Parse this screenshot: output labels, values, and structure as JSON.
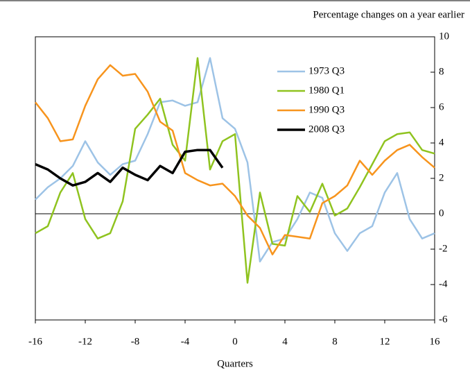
{
  "chart_data": {
    "type": "line",
    "subtitle": "Percentage changes on a year earlier",
    "x_label": "Quarters",
    "x": [
      -16,
      -15,
      -14,
      -13,
      -12,
      -11,
      -10,
      -9,
      -8,
      -7,
      -6,
      -5,
      -4,
      -3,
      -2,
      -1,
      0,
      1,
      2,
      3,
      4,
      5,
      6,
      7,
      8,
      9,
      10,
      11,
      12,
      13,
      14,
      15,
      16
    ],
    "xlim": [
      -16,
      16
    ],
    "xticks": [
      -16,
      -12,
      -8,
      -4,
      0,
      4,
      8,
      12,
      16
    ],
    "ylim": [
      -6,
      10
    ],
    "yticks": [
      -6,
      -4,
      -2,
      0,
      2,
      4,
      6,
      8,
      10
    ],
    "y_axis_side": "right",
    "legend": "upper right",
    "series": [
      {
        "name": "1973 Q3",
        "color": "#9dc3e6",
        "values": [
          0.8,
          1.5,
          2.0,
          2.7,
          4.1,
          2.9,
          2.2,
          2.8,
          3.0,
          4.5,
          6.3,
          6.4,
          6.1,
          6.3,
          8.8,
          5.4,
          4.8,
          2.9,
          -2.7,
          -1.6,
          -1.4,
          -0.3,
          1.2,
          0.9,
          -1.1,
          -2.1,
          -1.1,
          -0.7,
          1.2,
          2.3,
          -0.3,
          -1.4,
          -1.1
        ]
      },
      {
        "name": "1980 Q1",
        "color": "#8fc31f",
        "values": [
          -1.1,
          -0.7,
          1.2,
          2.3,
          -0.3,
          -1.4,
          -1.1,
          0.7,
          4.8,
          5.6,
          6.5,
          3.9,
          3.0,
          8.8,
          2.5,
          4.1,
          4.5,
          -3.9,
          1.2,
          -1.7,
          -1.8,
          1.0,
          0.1,
          1.7,
          -0.1,
          0.3,
          1.5,
          2.8,
          4.1,
          4.5,
          4.6,
          3.6,
          3.4
        ]
      },
      {
        "name": "1990 Q3",
        "color": "#f7941d",
        "values": [
          6.3,
          5.4,
          4.1,
          4.2,
          6.1,
          7.6,
          8.4,
          7.8,
          7.9,
          6.9,
          5.2,
          4.7,
          2.3,
          1.9,
          1.6,
          1.7,
          1.0,
          -0.1,
          -0.8,
          -2.3,
          -1.2,
          -1.3,
          -1.4,
          0.6,
          1.0,
          1.6,
          3.0,
          2.2,
          3.0,
          3.6,
          3.9,
          3.2,
          2.6
        ]
      },
      {
        "name": "2008 Q3",
        "color": "#000000",
        "values": [
          2.8,
          2.5,
          2.0,
          1.6,
          1.8,
          2.3,
          1.8,
          2.6,
          2.2,
          1.9,
          2.7,
          2.3,
          3.5,
          3.6,
          3.6,
          2.6,
          null,
          null,
          null,
          null,
          null,
          null,
          null,
          null,
          null,
          null,
          null,
          null,
          null,
          null,
          null,
          null,
          null
        ]
      }
    ]
  }
}
